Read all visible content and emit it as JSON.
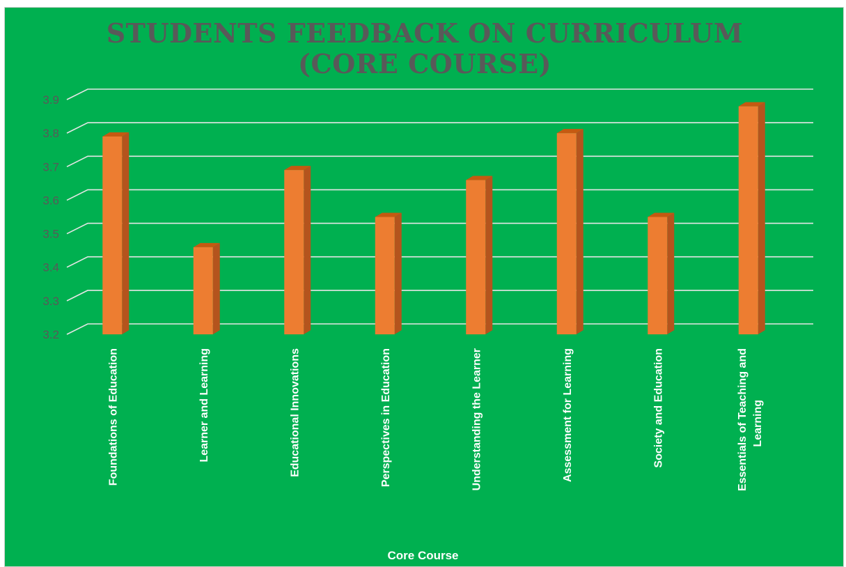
{
  "chart_data": {
    "type": "bar",
    "title": "STUDENTS FEEDBACK ON CURRICULUM (CORE COURSE)",
    "xlabel": "Core Course",
    "ylabel": "",
    "categories": [
      "Foundations of Education",
      "Learner and Learning",
      "Educational Innovations",
      "Perspectives in Education",
      "Understanding the Learner",
      "Assessment for Learning",
      "Society and Education",
      "Essentials of Teaching and Learning"
    ],
    "values": [
      3.79,
      3.46,
      3.69,
      3.55,
      3.66,
      3.8,
      3.55,
      3.88
    ],
    "ylim": [
      3.2,
      3.9
    ],
    "yticks": [
      "3.2",
      "3.3",
      "3.4",
      "3.5",
      "3.6",
      "3.7",
      "3.8",
      "3.9"
    ],
    "grid": true,
    "legend": "none",
    "colors": {
      "background": "#00b050",
      "bar_front": "#ed7d31",
      "bar_side": "#b4541d",
      "bar_top": "#c55a11",
      "gridline": "#e6e6e6",
      "tick_label": "#595959",
      "title": "#595959",
      "category_label": "#ffffff"
    }
  }
}
